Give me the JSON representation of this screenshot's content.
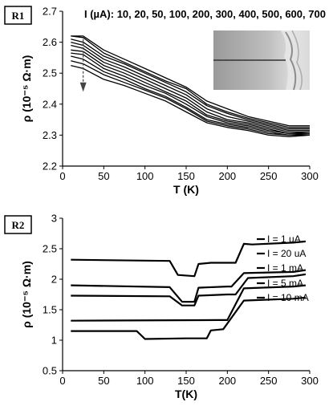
{
  "chart_data": [
    {
      "panel_label": "R1",
      "type": "line",
      "current_caption": "I (µA): 10, 20, 50, 100, 200, 300, 400, 500, 600, 700",
      "xlabel": "T (K)",
      "ylabel": "ρ (10⁻⁵ Ω·m)",
      "xlim": [
        0,
        300
      ],
      "ylim": [
        2.2,
        2.7
      ],
      "xticks": [
        "0",
        "50",
        "100",
        "150",
        "200",
        "250",
        "300"
      ],
      "yticks": [
        "2.2",
        "2.3",
        "2.4",
        "2.5",
        "2.6",
        "2.7"
      ],
      "grid": false,
      "has_inset_image": true,
      "arrow": "dashed arrow near T≈25 K pointing down",
      "x": [
        10,
        25,
        50,
        75,
        100,
        125,
        150,
        175,
        200,
        225,
        250,
        275,
        300
      ],
      "series": [
        {
          "current": 10,
          "values": [
            2.62,
            2.62,
            2.575,
            2.545,
            2.515,
            2.485,
            2.455,
            2.41,
            2.385,
            2.36,
            2.345,
            2.33,
            2.33
          ]
        },
        {
          "current": 20,
          "values": [
            2.62,
            2.615,
            2.565,
            2.535,
            2.505,
            2.475,
            2.45,
            2.4,
            2.375,
            2.355,
            2.34,
            2.325,
            2.325
          ]
        },
        {
          "current": 50,
          "values": [
            2.61,
            2.6,
            2.555,
            2.53,
            2.5,
            2.47,
            2.44,
            2.395,
            2.37,
            2.35,
            2.335,
            2.32,
            2.32
          ]
        },
        {
          "current": 100,
          "values": [
            2.6,
            2.59,
            2.545,
            2.52,
            2.49,
            2.46,
            2.43,
            2.385,
            2.36,
            2.345,
            2.33,
            2.315,
            2.315
          ]
        },
        {
          "current": 200,
          "values": [
            2.59,
            2.58,
            2.535,
            2.51,
            2.48,
            2.45,
            2.42,
            2.375,
            2.35,
            2.34,
            2.325,
            2.31,
            2.31
          ]
        },
        {
          "current": 300,
          "values": [
            2.575,
            2.57,
            2.525,
            2.5,
            2.47,
            2.44,
            2.41,
            2.365,
            2.345,
            2.335,
            2.32,
            2.305,
            2.31
          ]
        },
        {
          "current": 400,
          "values": [
            2.565,
            2.56,
            2.515,
            2.49,
            2.46,
            2.435,
            2.4,
            2.36,
            2.34,
            2.33,
            2.315,
            2.305,
            2.305
          ]
        },
        {
          "current": 500,
          "values": [
            2.555,
            2.545,
            2.505,
            2.48,
            2.45,
            2.425,
            2.39,
            2.35,
            2.335,
            2.325,
            2.31,
            2.3,
            2.305
          ]
        },
        {
          "current": 600,
          "values": [
            2.54,
            2.53,
            2.495,
            2.47,
            2.445,
            2.42,
            2.385,
            2.345,
            2.33,
            2.32,
            2.305,
            2.3,
            2.3
          ]
        },
        {
          "current": 700,
          "values": [
            2.525,
            2.515,
            2.48,
            2.46,
            2.435,
            2.41,
            2.375,
            2.34,
            2.325,
            2.315,
            2.3,
            2.295,
            2.3
          ]
        }
      ]
    },
    {
      "panel_label": "R2",
      "type": "line",
      "xlabel": "T(K)",
      "ylabel": "ρ (10⁻⁵ Ω·m)",
      "xlim": [
        0,
        300
      ],
      "ylim": [
        0.5,
        3
      ],
      "xticks": [
        "0",
        "50",
        "100",
        "150",
        "200",
        "250",
        "300"
      ],
      "yticks": [
        "0.5",
        "1",
        "1.5",
        "2",
        "2.5",
        "3"
      ],
      "grid": false,
      "legend_placement": "right",
      "series": [
        {
          "name": "I = 1 uA",
          "x": [
            10,
            130,
            140,
            160,
            165,
            180,
            210,
            220,
            230,
            280,
            295
          ],
          "values": [
            2.32,
            2.3,
            2.07,
            2.05,
            2.25,
            2.27,
            2.27,
            2.58,
            2.57,
            2.6,
            2.62
          ]
        },
        {
          "name": "I = 20 uA",
          "x": [
            10,
            130,
            145,
            160,
            165,
            200,
            205,
            220,
            280,
            295
          ],
          "values": [
            1.9,
            1.87,
            1.63,
            1.63,
            1.86,
            1.88,
            1.88,
            2.1,
            2.12,
            2.15
          ]
        },
        {
          "name": "I = 1 mA",
          "x": [
            10,
            130,
            145,
            160,
            165,
            200,
            210,
            225,
            280,
            295
          ],
          "values": [
            1.73,
            1.72,
            1.57,
            1.57,
            1.73,
            1.75,
            1.75,
            2.02,
            2.05,
            2.08
          ]
        },
        {
          "name": "I = 5 mA",
          "x": [
            10,
            190,
            200,
            220,
            280,
            295
          ],
          "values": [
            1.32,
            1.33,
            1.33,
            1.85,
            1.88,
            1.9
          ]
        },
        {
          "name": "I = 10 mA",
          "x": [
            10,
            90,
            100,
            150,
            175,
            180,
            195,
            220,
            280,
            295
          ],
          "values": [
            1.15,
            1.15,
            1.02,
            1.03,
            1.03,
            1.16,
            1.18,
            1.65,
            1.68,
            1.7
          ]
        }
      ]
    }
  ]
}
